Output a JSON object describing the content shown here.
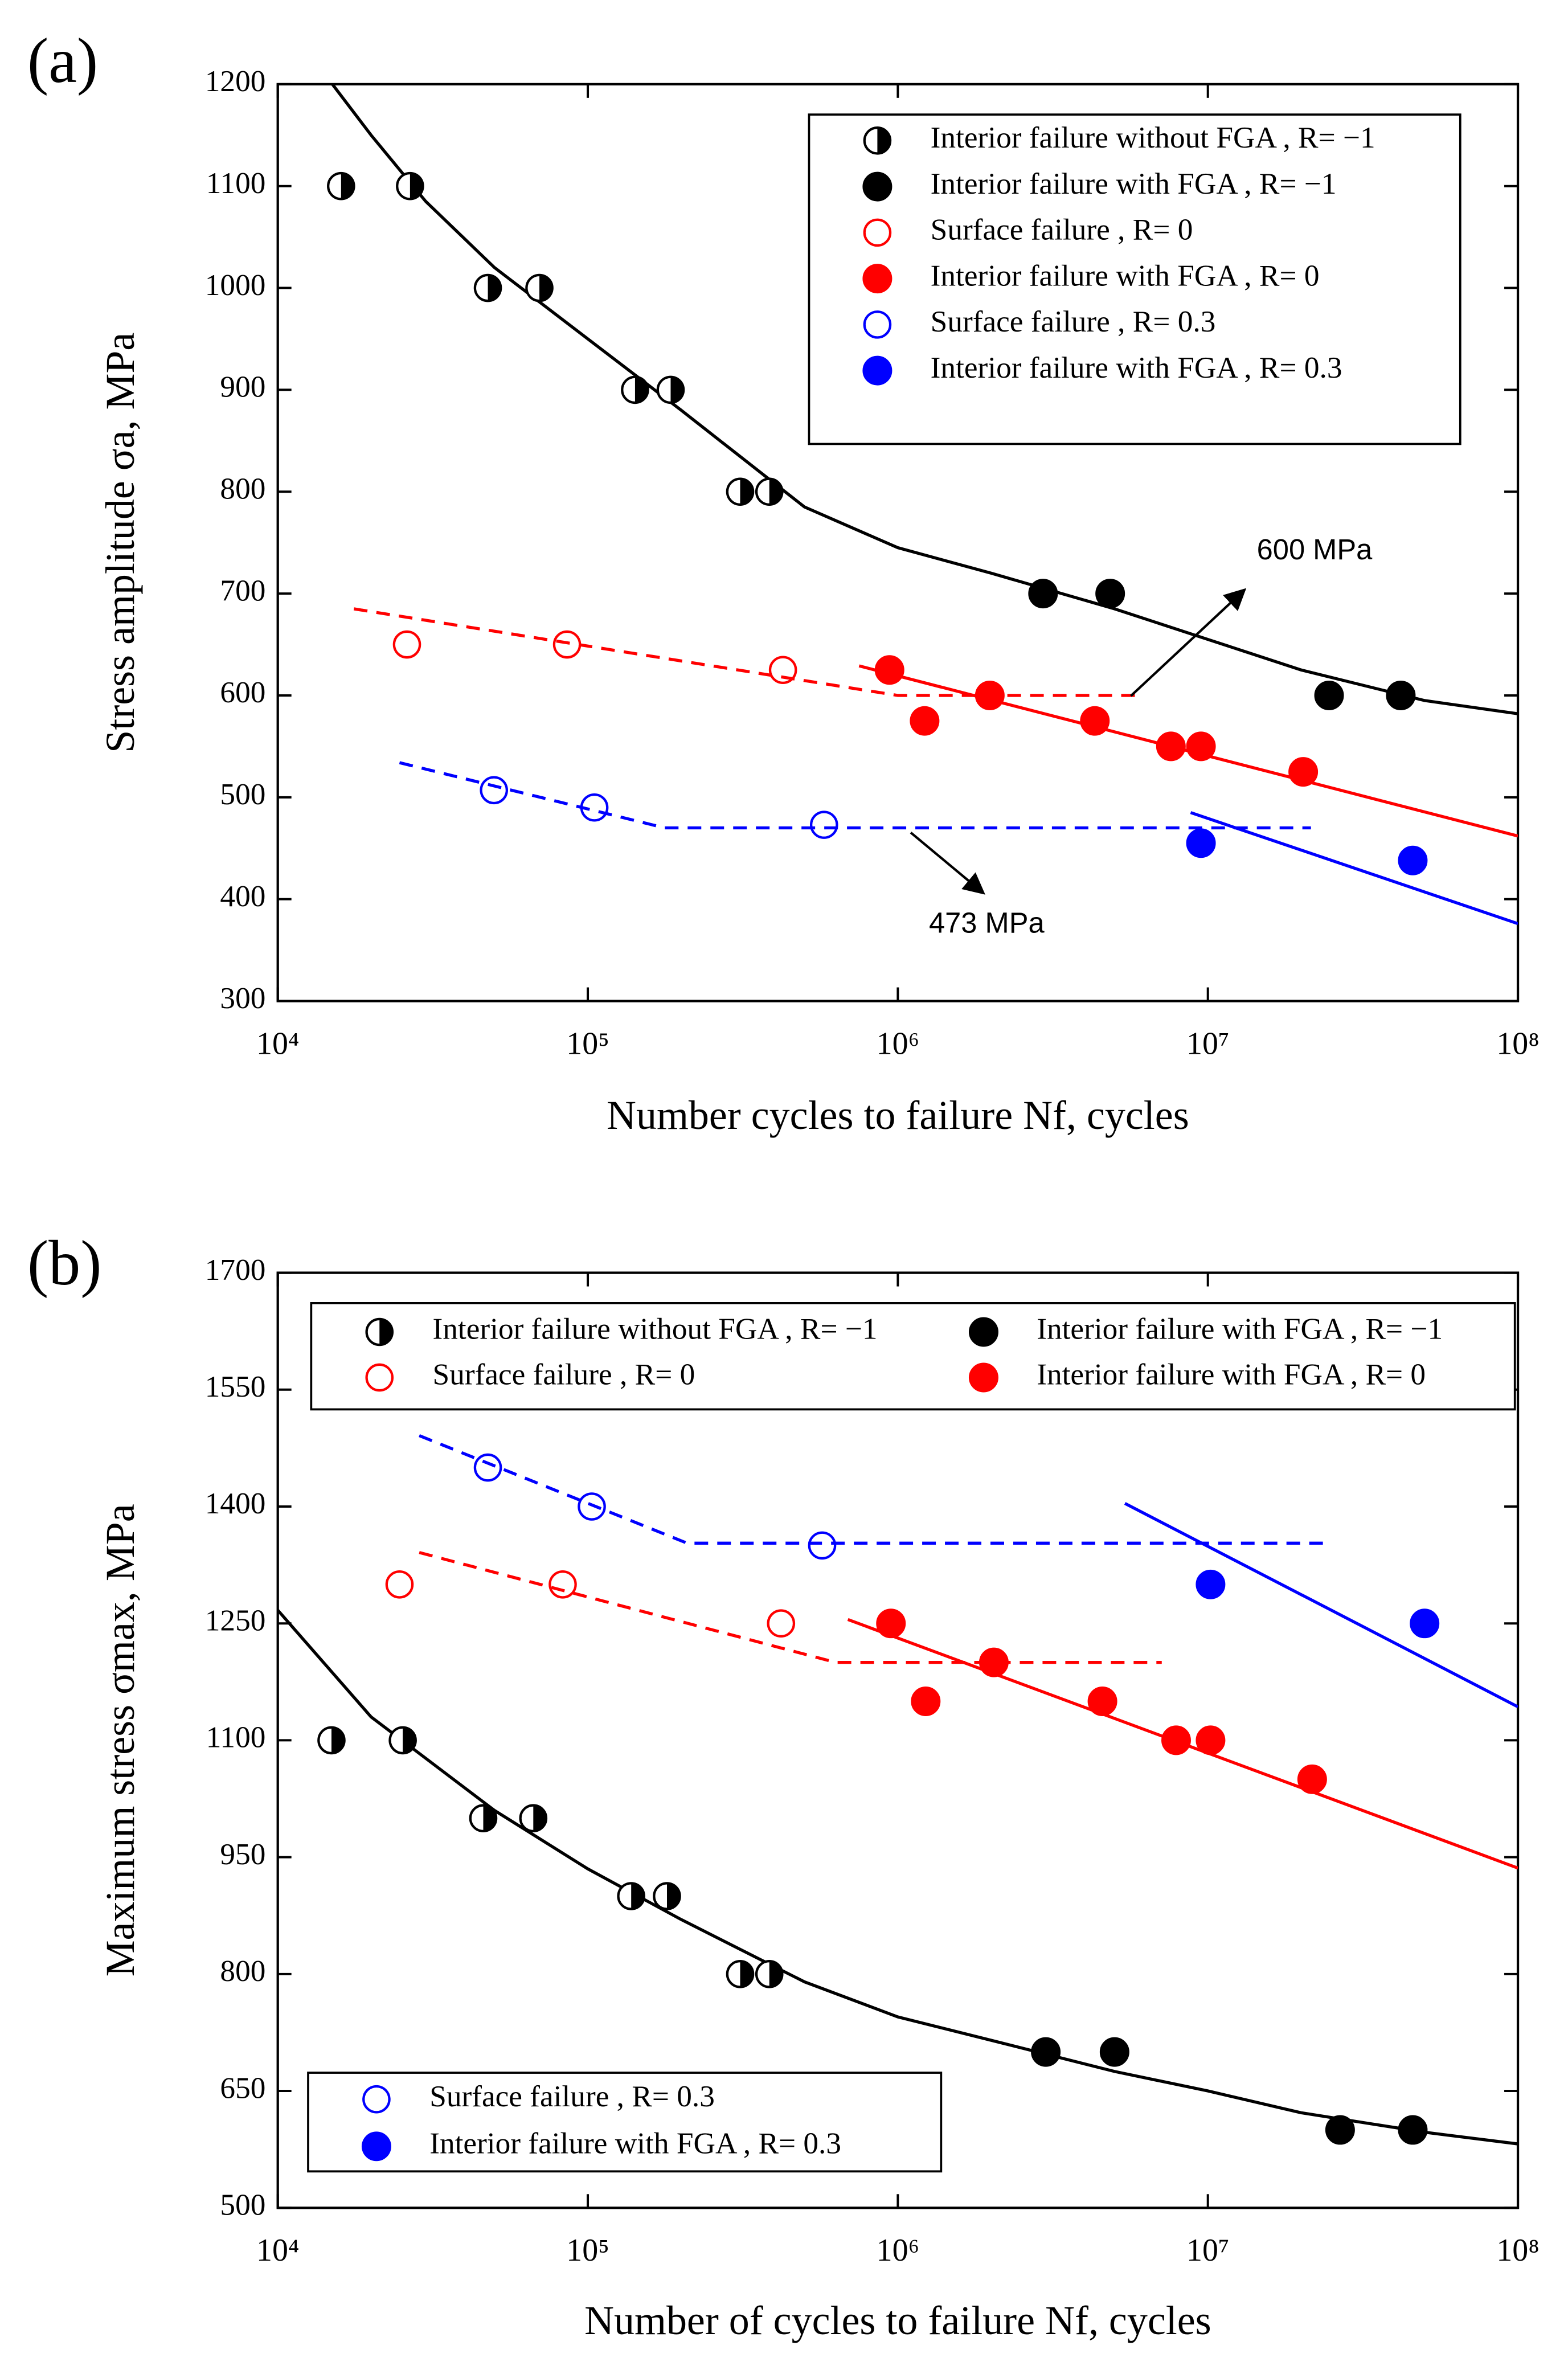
{
  "chart_data": [
    {
      "type": "scatter",
      "panel": "(a)",
      "xscale": "log",
      "xlabel": "Number cycles to failure Nf, cycles",
      "ylabel": "Stress amplitude σa, MPa",
      "xlim": [
        10000,
        100000000
      ],
      "xticks": [
        {
          "value": 10000,
          "label": "10⁴"
        },
        {
          "value": 100000,
          "label": "10⁵"
        },
        {
          "value": 1000000,
          "label": "10⁶"
        },
        {
          "value": 10000000,
          "label": "10⁷"
        },
        {
          "value": 100000000,
          "label": "10⁸"
        }
      ],
      "ylim": [
        300,
        1200
      ],
      "yticks": [
        300,
        400,
        500,
        600,
        700,
        800,
        900,
        1000,
        1100,
        1200
      ],
      "series": [
        {
          "name": "Interior failure without FGA , R= −1",
          "color": "#000000",
          "marker": "half",
          "legend": "upper right",
          "x": [
            16000,
            26700,
            47600,
            69800,
            142000,
            185000,
            310000,
            385000
          ],
          "values": [
            1100,
            1100,
            1000,
            1000,
            900,
            900,
            800,
            800
          ]
        },
        {
          "name": "Interior failure with FGA , R= −1",
          "color": "#000000",
          "marker": "filled",
          "legend": "upper right",
          "x": [
            2940000,
            4840000,
            24600000,
            41900000
          ],
          "values": [
            700,
            700,
            600,
            600
          ]
        },
        {
          "name": "Surface failure , R= 0",
          "color": "#ff0000",
          "marker": "open",
          "legend": "upper right",
          "x": [
            26100,
            85700,
            426000
          ],
          "values": [
            650,
            650,
            625
          ]
        },
        {
          "name": "Interior failure with FGA , R= 0",
          "color": "#ff0000",
          "marker": "filled",
          "legend": "upper right",
          "x": [
            940000,
            1220000,
            1980000,
            4320000,
            7600000,
            9500000,
            20300000
          ],
          "values": [
            625,
            575,
            600,
            575,
            550,
            550,
            525
          ]
        },
        {
          "name": "Surface failure , R= 0.3",
          "color": "#0000ff",
          "marker": "open",
          "legend": "upper right",
          "x": [
            49800,
            105000,
            578000
          ],
          "values": [
            507,
            490,
            473
          ]
        },
        {
          "name": "Interior failure with FGA , R= 0.3",
          "color": "#0000ff",
          "marker": "filled",
          "legend": "upper right",
          "x": [
            9500000,
            45800000
          ],
          "values": [
            455,
            438
          ]
        }
      ],
      "fits": [
        {
          "color": "#000000",
          "dash": false,
          "x": [
            15000,
            20000,
            30000,
            50000,
            100000,
            200000,
            500000,
            1000000,
            2000000,
            5000000,
            10000000,
            20000000,
            50000000,
            100000000
          ],
          "values": [
            1200,
            1150,
            1085,
            1020,
            950,
            880,
            785,
            745,
            720,
            685,
            655,
            625,
            595,
            582
          ]
        },
        {
          "color": "#ff0000",
          "dash": true,
          "x": [
            17600,
            1000000,
            5900000
          ],
          "values": [
            685,
            600,
            600
          ]
        },
        {
          "color": "#ff0000",
          "dash": false,
          "x": [
            750000,
            100000000
          ],
          "values": [
            629,
            462
          ]
        },
        {
          "color": "#0000ff",
          "dash": true,
          "x": [
            24700,
            177000,
            21500000
          ],
          "values": [
            534,
            470,
            470
          ]
        },
        {
          "color": "#0000ff",
          "dash": false,
          "x": [
            8800000,
            100000000
          ],
          "values": [
            485,
            376
          ]
        }
      ],
      "annotations": [
        {
          "text": "600 MPa"
        },
        {
          "text": "473 MPa"
        }
      ]
    },
    {
      "type": "scatter",
      "panel": "(b)",
      "xscale": "log",
      "xlabel": "Number of cycles to failure Nf, cycles",
      "ylabel": "Maximum stress σmax, MPa",
      "xlim": [
        10000,
        100000000
      ],
      "xticks": [
        {
          "value": 10000,
          "label": "10⁴"
        },
        {
          "value": 100000,
          "label": "10⁵"
        },
        {
          "value": 1000000,
          "label": "10⁶"
        },
        {
          "value": 10000000,
          "label": "10⁷"
        },
        {
          "value": 100000000,
          "label": "10⁸"
        }
      ],
      "ylim": [
        500,
        1700
      ],
      "yticks": [
        500,
        650,
        800,
        950,
        1100,
        1250,
        1400,
        1550,
        1700
      ],
      "series": [
        {
          "name": "Interior failure without FGA , R= −1",
          "color": "#000000",
          "marker": "half",
          "legend": "top",
          "x": [
            14900,
            25300,
            46000,
            66700,
            138000,
            180000,
            310000,
            385000
          ],
          "values": [
            1100,
            1100,
            1000,
            1000,
            900,
            900,
            800,
            800
          ]
        },
        {
          "name": "Interior failure with FGA , R= −1",
          "color": "#000000",
          "marker": "filled",
          "legend": "top",
          "x": [
            3000000,
            5000000,
            26700000,
            45800000
          ],
          "values": [
            700,
            700,
            600,
            600
          ]
        },
        {
          "name": "Surface failure , R= 0",
          "color": "#ff0000",
          "marker": "open",
          "legend": "top",
          "x": [
            24700,
            83000,
            420000
          ],
          "values": [
            1300,
            1300,
            1250
          ]
        },
        {
          "name": "Interior failure with FGA , R= 0",
          "color": "#ff0000",
          "marker": "filled",
          "legend": "top",
          "x": [
            950000,
            1230000,
            2040000,
            4570000,
            7900000,
            10200000,
            21700000
          ],
          "values": [
            1250,
            1150,
            1200,
            1150,
            1100,
            1100,
            1050
          ]
        },
        {
          "name": "Surface failure , R= 0.3",
          "color": "#0000ff",
          "marker": "open",
          "legend": "lower left",
          "x": [
            47600,
            103000,
            570000
          ],
          "values": [
            1450,
            1400,
            1350
          ]
        },
        {
          "name": "Interior failure with FGA , R= 0.3",
          "color": "#0000ff",
          "marker": "filled",
          "legend": "lower left",
          "x": [
            10200000,
            50000000
          ],
          "values": [
            1300,
            1250
          ]
        }
      ],
      "fits": [
        {
          "color": "#000000",
          "dash": false,
          "x": [
            10000,
            20000,
            50000,
            100000,
            200000,
            500000,
            1000000,
            2000000,
            5000000,
            10000000,
            20000000,
            50000000,
            100000000
          ],
          "values": [
            1267,
            1130,
            1010,
            935,
            870,
            790,
            745,
            715,
            675,
            650,
            622,
            597,
            582
          ]
        },
        {
          "color": "#ff0000",
          "dash": true,
          "x": [
            28600,
            630000,
            7100000
          ],
          "values": [
            1341,
            1200,
            1200
          ]
        },
        {
          "color": "#ff0000",
          "dash": false,
          "x": [
            690000,
            100000000
          ],
          "values": [
            1255,
            936
          ]
        },
        {
          "color": "#0000ff",
          "dash": true,
          "x": [
            28600,
            209000,
            23800000
          ],
          "values": [
            1491,
            1353,
            1353
          ]
        },
        {
          "color": "#0000ff",
          "dash": false,
          "x": [
            5400000,
            100000000
          ],
          "values": [
            1404,
            1143
          ]
        }
      ]
    }
  ]
}
